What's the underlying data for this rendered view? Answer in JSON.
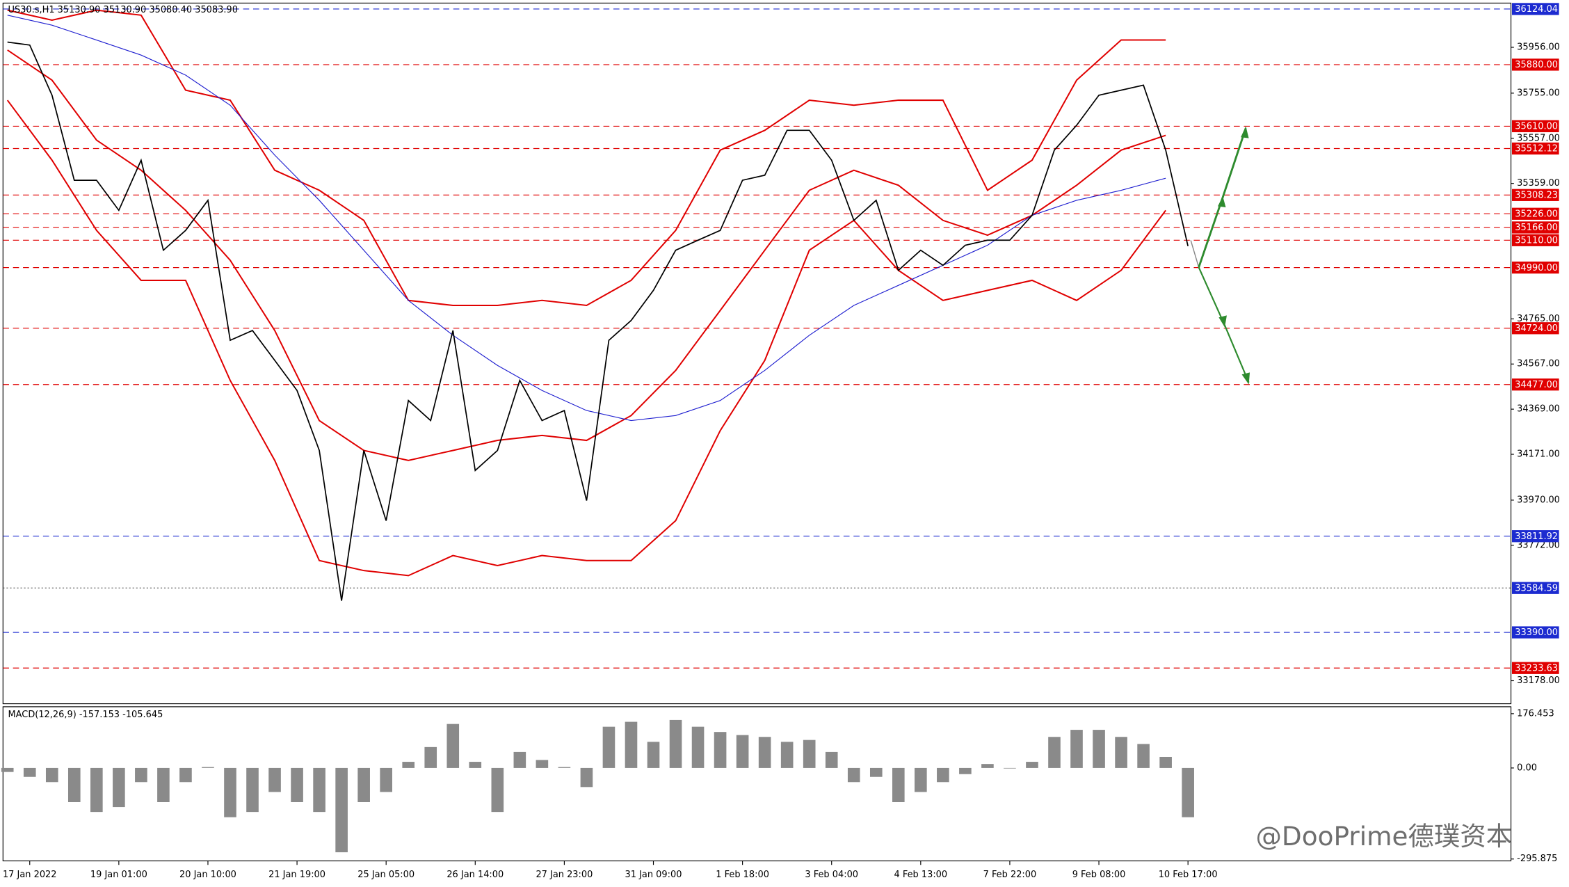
{
  "header": "US30.s,H1  35130.90 35130.90 35080.40 35083.90",
  "watermark": "@DooPrime德璞资本",
  "chart_data": [
    {
      "type": "line",
      "x": [
        0,
        1,
        2,
        3,
        4,
        5,
        6,
        7,
        8,
        9,
        10,
        11,
        12,
        13,
        14,
        15,
        16,
        17,
        18,
        19,
        20,
        21,
        22,
        23,
        24,
        25,
        26,
        27,
        28,
        29,
        30,
        31,
        32,
        33,
        34,
        35,
        36,
        37,
        38,
        39,
        40,
        41,
        42,
        43,
        44,
        45,
        46,
        47,
        48,
        49,
        50,
        51,
        52,
        53
      ],
      "values": [
        35979,
        35966,
        35746,
        35373,
        35373,
        35241,
        35461,
        35066,
        35153,
        35285,
        34671,
        34714,
        34583,
        34451,
        34188,
        33529,
        34188,
        33880,
        34407,
        34319,
        34714,
        34100,
        34188,
        34495,
        34319,
        34363,
        33968,
        34671,
        34758,
        34890,
        35066,
        35110,
        35153,
        35373,
        35395,
        35592,
        35592,
        35461,
        35197,
        35285,
        34978,
        35066,
        35000,
        35088,
        35110,
        35110,
        35219,
        35505,
        35614,
        35746,
        35768,
        35790,
        35505,
        35084
      ],
      "color": "#000000",
      "overlays": {
        "x": [
          0,
          2,
          4,
          6,
          8,
          10,
          12,
          14,
          16,
          18,
          20,
          22,
          24,
          26,
          28,
          30,
          32,
          34,
          36,
          38,
          40,
          42,
          44,
          46,
          48,
          50,
          52
        ],
        "series": [
          {
            "color": "#e00000",
            "values": [
              36119,
              36075,
              36119,
              36097,
              35768,
              35724,
              35417,
              35329,
              35197,
              34846,
              34824,
              34824,
              34846,
              34824,
              34934,
              35153,
              35505,
              35592,
              35724,
              35702,
              35724,
              35724,
              35329,
              35461,
              35812,
              35988,
              35988
            ]
          },
          {
            "color": "#e00000",
            "values": [
              35944,
              35812,
              35549,
              35417,
              35241,
              35022,
              34714,
              34319,
              34188,
              34144,
              34188,
              34232,
              34254,
              34232,
              34341,
              34539,
              34802,
              35066,
              35329,
              35417,
              35351,
              35197,
              35132,
              35219,
              35351,
              35505,
              35570
            ]
          },
          {
            "color": "#e00000",
            "values": [
              35724,
              35461,
              35153,
              34934,
              34934,
              34495,
              34144,
              33705,
              33661,
              33639,
              33727,
              33683,
              33727,
              33705,
              33705,
              33880,
              34275,
              34583,
              35066,
              35197,
              34978,
              34846,
              34890,
              34934,
              34846,
              34978,
              35241
            ]
          },
          {
            "color": "#2020d0",
            "values": [
              36097,
              36053,
              35988,
              35922,
              35834,
              35702,
              35483,
              35285,
              35066,
              34846,
              34693,
              34561,
              34451,
              34363,
              34319,
              34341,
              34407,
              34539,
              34693,
              34824,
              34912,
              35000,
              35088,
              35219,
              35285,
              35329,
              35382
            ]
          }
        ]
      },
      "levels": [
        {
          "value": 36124.04,
          "label": "36124.04",
          "color": "#1c2bd0"
        },
        {
          "value": 35880,
          "label": "35880.00",
          "color": "#e00000"
        },
        {
          "value": 35610,
          "label": "35610.00",
          "color": "#e00000"
        },
        {
          "value": 35512.12,
          "label": "35512.12",
          "color": "#e00000"
        },
        {
          "value": 35308.23,
          "label": "35308.23",
          "color": "#e00000"
        },
        {
          "value": 35226,
          "label": "35226.00",
          "color": "#e00000"
        },
        {
          "value": 35166,
          "label": "35166.00",
          "color": "#e00000"
        },
        {
          "value": 35110,
          "label": "35110.00",
          "color": "#e00000"
        },
        {
          "value": 34990,
          "label": "34990.00",
          "color": "#e00000"
        },
        {
          "value": 34724,
          "label": "34724.00",
          "color": "#e00000"
        },
        {
          "value": 34477,
          "label": "34477.00",
          "color": "#e00000"
        },
        {
          "value": 33811.92,
          "label": "33811.92",
          "color": "#1c2bd0"
        },
        {
          "value": 33584.59,
          "label": "33584.59",
          "color": "#1c2bd0",
          "dotted": true
        },
        {
          "value": 33390,
          "label": "33390.00",
          "color": "#1c2bd0"
        },
        {
          "value": 33233.63,
          "label": "33233.63",
          "color": "#e00000"
        }
      ],
      "xlim": [
        -0.2,
        67.5
      ],
      "xticks": [
        {
          "value": 1,
          "label": "17 Jan 2022"
        },
        {
          "value": 5,
          "label": "19 Jan 01:00"
        },
        {
          "value": 9,
          "label": "20 Jan 10:00"
        },
        {
          "value": 13,
          "label": "21 Jan 19:00"
        },
        {
          "value": 17,
          "label": "25 Jan 05:00"
        },
        {
          "value": 21,
          "label": "26 Jan 14:00"
        },
        {
          "value": 25,
          "label": "27 Jan 23:00"
        },
        {
          "value": 29,
          "label": "31 Jan 09:00"
        },
        {
          "value": 33,
          "label": "1 Feb 18:00"
        },
        {
          "value": 37,
          "label": "3 Feb 04:00"
        },
        {
          "value": 41,
          "label": "4 Feb 13:00"
        },
        {
          "value": 45,
          "label": "7 Feb 22:00"
        },
        {
          "value": 49,
          "label": "9 Feb 08:00"
        },
        {
          "value": 53,
          "label": "10 Feb 17:00"
        }
      ],
      "ylim": [
        33077,
        36150
      ],
      "yticks": [
        {
          "value": 35956,
          "label": "35956.00"
        },
        {
          "value": 35755,
          "label": "35755.00"
        },
        {
          "value": 35557,
          "label": "35557.00"
        },
        {
          "value": 35359,
          "label": "35359.00"
        },
        {
          "value": 34765,
          "label": "34765.00"
        },
        {
          "value": 34567,
          "label": "34567.00"
        },
        {
          "value": 34369,
          "label": "34369.00"
        },
        {
          "value": 34171,
          "label": "34171.00"
        },
        {
          "value": 33970,
          "label": "33970.00"
        },
        {
          "value": 33772,
          "label": "33772.00"
        },
        {
          "value": 33178,
          "label": "33178.00"
        }
      ]
    },
    {
      "type": "bar",
      "title": "MACD(12,26,9) -157.153 -105.645",
      "x": [
        0,
        1,
        2,
        3,
        4,
        5,
        6,
        7,
        8,
        9,
        10,
        11,
        12,
        13,
        14,
        15,
        16,
        17,
        18,
        19,
        20,
        21,
        22,
        23,
        24,
        25,
        26,
        27,
        28,
        29,
        30,
        31,
        32,
        33,
        34,
        35,
        36,
        37,
        38,
        39,
        40,
        41,
        42,
        43,
        44,
        45,
        46,
        47,
        48,
        49,
        50,
        51,
        52,
        53
      ],
      "values": [
        -13,
        -29,
        -46,
        -111,
        -143,
        -127,
        -46,
        -111,
        -46,
        3,
        -160,
        -143,
        -78,
        -111,
        -143,
        -274,
        -111,
        -78,
        20,
        68,
        143,
        20,
        -143,
        52,
        26,
        3,
        -62,
        134,
        150,
        85,
        156,
        134,
        117,
        107,
        101,
        85,
        91,
        52,
        -46,
        -29,
        -111,
        -78,
        -46,
        -20,
        13,
        0,
        20,
        101,
        124,
        124,
        101,
        78,
        36,
        -160
      ],
      "color": "#8a8a8a",
      "xlim": [
        -0.2,
        67.5
      ],
      "ylim": [
        -302,
        199
      ],
      "yticks": [
        {
          "value": 176.453,
          "label": "176.453"
        },
        {
          "value": 0,
          "label": "0.00"
        },
        {
          "value": -295.875,
          "label": "-295.875"
        }
      ]
    }
  ]
}
